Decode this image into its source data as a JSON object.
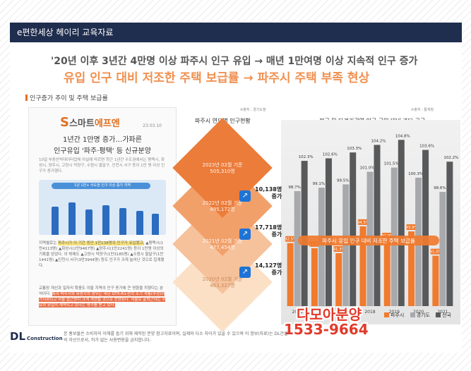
{
  "header": {
    "title": "e편한세상 헤이리 교육자료"
  },
  "headline": {
    "line1": "'20년 이후 3년간 4만명 이상 파주시 인구 유입 → 매년 1만여명 이상 지속적 인구 증가",
    "line2": "유입 인구 대비 저조한 주택 보급률 → 파주시 주택 부족 현상"
  },
  "section_label": "인구증가 추이 및 주택 보급률",
  "article": {
    "logo_s": "S",
    "logo_rest": "스마트",
    "logo_orange": "에프엔",
    "date": "23.03.10",
    "title1": "1년간 1만명 증가…가파른",
    "title2": "인구유입 '파주·평택' 등 신규분양",
    "intro": "10일 부동산빅데이터업체 아실에 따르면 최근 1년간 수도권에서는 평택시, 화성시, 양주시, 고양시 덕양구, 수원시 팔달구, 인천시 서구 등이 1만 명 이상 인구가 증가했다.",
    "chart_caption": "1년 1만+ 수도권 인구 이상 증가 지역",
    "p1_a": "지역별로는 ",
    "p1_hl": "파주시가 이 기간 동안 1만138명의 인구가 유입됐고,",
    "p1_b": " ▲평택시(1만4113명) ▲화성시(2만9467명) ▲양주시(1만2241명) 등이 1만명 이상의 기록을 얻었다. 이 밖에도 ▲고양시 덕양구(1만3185명) ▲수원시 팔달구(1만1441명) ▲인천시 서구(3만3944명) 등도 인구가 크게 늘어난 것으로 집계됐다.",
    "p2_a": "교통망 개선과 일자리 확충도 이들 지역의 인구 증가에 큰 영향을 끼쳤다는 분석이다. ",
    "p2_hl": "특히 파주시와 화성시의 경우는 내년 GTX-A노선의 조기 개통(추정)이 가시화되고 서울 접근성이 크게 개선될 것으로 전망된다. 서울로 출퇴근하는 수요의 유입이 계속되고 있다는 평가를 받고 있다."
  },
  "chart1": {
    "source": "※출처 : 경기도청",
    "title": "파주시 연도별 인구현황"
  },
  "chart2": {
    "source": "※출처 : 통계청",
    "title": "전국 및 타경기권역 인구 규입 대비 과다 공급",
    "banner": "파주시 유입 인구 대비 저조한 주택 보급률"
  },
  "chart_data": [
    {
      "type": "bar",
      "title": "파주시 연도별 인구현황",
      "categories": [
        "2020년 02월 기준",
        "2021년 02월 기준",
        "2022년 02월 기준",
        "2023년 02월 기준"
      ],
      "values": [
        463327,
        477454,
        495172,
        505310
      ],
      "value_labels": [
        "463,327명",
        "477,454명",
        "495,172명",
        "505,310명"
      ],
      "increases": [
        {
          "value": "14,127명",
          "label": "증가"
        },
        {
          "value": "17,718명",
          "label": "증가"
        },
        {
          "value": "10,138명",
          "label": "증가"
        }
      ],
      "colors": [
        "#fbe0c6",
        "#f6c29c",
        "#f2a06a",
        "#ec7c3a"
      ]
    },
    {
      "type": "bar",
      "title": "전국 및 타경기권역 인구 규입 대비 과다 공급",
      "categories": [
        "2015",
        "2016",
        "2017",
        "2018",
        "2019",
        "2020",
        "2021"
      ],
      "series": [
        {
          "name": "파주시",
          "color": "#f07a2e",
          "values": [
            92.5,
            91.9,
            91.3,
            94.5,
            92.9,
            93.9,
            91.0
          ]
        },
        {
          "name": "경기도",
          "color": "#a7a9ac",
          "values": [
            98.7,
            99.1,
            99.5,
            101.0,
            101.5,
            100.3,
            98.6
          ]
        },
        {
          "name": "전국",
          "color": "#58595b",
          "values": [
            102.3,
            102.6,
            103.3,
            104.2,
            104.8,
            103.6,
            102.2
          ]
        }
      ],
      "ylim": [
        85,
        106
      ]
    }
  ],
  "overlay": {
    "name": "다모아분양",
    "phone": "1533-9664"
  },
  "legend": {
    "paju": "파주시",
    "gyeonggi": "경기도",
    "national": "전국"
  },
  "footer": {
    "logo": "DL",
    "logo_sub": "Construction",
    "note": "본 홍보물은 소비자의 이해를 돕기 위해 제작된 분양 참고자료이며, 실제와 다소 차이가 있을 수 있으며 이 정보(자료)는 DL건설의 자산으로서, 허가 없는 사용변용을 금지합니다."
  }
}
